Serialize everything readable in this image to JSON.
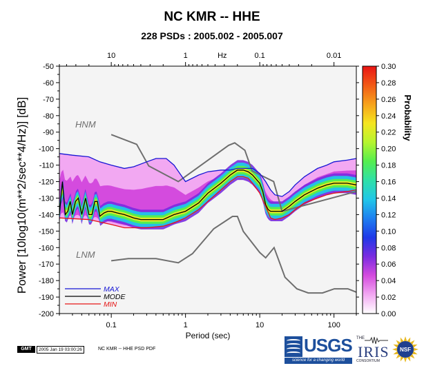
{
  "title": "NC KMR -- HHE",
  "subtitle": "228 PSDs : 2005.002 - 2005.007",
  "chart_data": {
    "type": "heatmap",
    "title": "NC KMR -- HHE",
    "subtitle": "228 PSDs : 2005.002 - 2005.007",
    "xlabel": "Period (sec)",
    "xscale": "log",
    "xlim": [
      0.02,
      200
    ],
    "x_ticks": [
      0.1,
      1,
      10,
      100
    ],
    "x_tick_labels": [
      "0.1",
      "1",
      "10",
      "100"
    ],
    "top_axis_label": "Hz",
    "top_ticks": [
      10,
      1,
      0.1,
      0.01
    ],
    "top_tick_labels": [
      "10",
      "1",
      "0.1",
      "0.01"
    ],
    "ylabel": "Power [10log10(m**2/sec**4/Hz)] [dB]",
    "ylim": [
      -200,
      -50
    ],
    "y_ticks": [
      -50,
      -60,
      -70,
      -80,
      -90,
      -100,
      -110,
      -120,
      -130,
      -140,
      -150,
      -160,
      -170,
      -180,
      -190,
      -200
    ],
    "y_tick_labels": [
      "-50",
      "-60",
      "-70",
      "-80",
      "-90",
      "-100",
      "-110",
      "-120",
      "-130",
      "-140",
      "-150",
      "-160",
      "-170",
      "-180",
      "-190",
      "-200"
    ],
    "colorbar": {
      "label": "Probability",
      "range": [
        0.0,
        0.3
      ],
      "ticks": [
        0.0,
        0.02,
        0.04,
        0.06,
        0.08,
        0.1,
        0.12,
        0.14,
        0.16,
        0.18,
        0.2,
        0.22,
        0.24,
        0.26,
        0.28,
        0.3
      ],
      "tick_labels": [
        "0.00",
        "0.02",
        "0.04",
        "0.06",
        "0.08",
        "0.10",
        "0.12",
        "0.14",
        "0.16",
        "0.18",
        "0.20",
        "0.22",
        "0.24",
        "0.26",
        "0.28",
        "0.30"
      ],
      "colors": [
        "#ffffff",
        "#f2a8f2",
        "#d44bde",
        "#7a2be0",
        "#1f39e8",
        "#1e7ff0",
        "#21c7e8",
        "#2fe0a8",
        "#55ee4f",
        "#b6f52f",
        "#f5e51f",
        "#f6a21b",
        "#f25a16",
        "#e81414"
      ]
    },
    "annotations": [
      "HNM",
      "LNM"
    ],
    "legend": {
      "placement": "bottom-left",
      "items": [
        {
          "name": "MAX",
          "color": "#1414d4"
        },
        {
          "name": "MODE",
          "color": "#000000"
        },
        {
          "name": "MIN",
          "color": "#e51414"
        }
      ]
    },
    "series": [
      {
        "name": "MAX",
        "color": "#1414d4",
        "x": [
          0.02,
          0.03,
          0.05,
          0.07,
          0.1,
          0.15,
          0.2,
          0.3,
          0.4,
          0.55,
          0.7,
          1.0,
          1.5,
          2,
          3,
          4,
          5,
          6,
          7,
          8,
          10,
          12,
          14,
          16,
          20,
          25,
          30,
          40,
          60,
          80,
          100,
          150,
          200
        ],
        "y": [
          -103,
          -104,
          -105,
          -108,
          -110,
          -112,
          -111,
          -108,
          -106,
          -106,
          -110,
          -120,
          -116,
          -114,
          -113,
          -113,
          -112,
          -112,
          -112,
          -112,
          -115,
          -120,
          -125,
          -128,
          -129,
          -126,
          -122,
          -117,
          -112,
          -110,
          -108,
          -107,
          -106
        ]
      },
      {
        "name": "MODE",
        "color": "#000000",
        "x": [
          0.02,
          0.022,
          0.024,
          0.026,
          0.028,
          0.03,
          0.033,
          0.036,
          0.04,
          0.045,
          0.05,
          0.055,
          0.06,
          0.065,
          0.07,
          0.08,
          0.09,
          0.1,
          0.12,
          0.15,
          0.2,
          0.25,
          0.3,
          0.4,
          0.5,
          0.7,
          1.0,
          1.5,
          2,
          3,
          4,
          5,
          6,
          7,
          8,
          10,
          11,
          12,
          13,
          14,
          16,
          20,
          25,
          30,
          40,
          60,
          80,
          100,
          150,
          200
        ],
        "y": [
          -140,
          -120,
          -140,
          -138,
          -132,
          -140,
          -132,
          -130,
          -140,
          -130,
          -140,
          -140,
          -132,
          -132,
          -141,
          -139,
          -138,
          -138,
          -139,
          -140,
          -142,
          -143,
          -143,
          -143,
          -143,
          -140,
          -138,
          -133,
          -127,
          -121,
          -116,
          -113,
          -113,
          -114,
          -116,
          -121,
          -126,
          -134,
          -137,
          -138,
          -138,
          -138,
          -135,
          -132,
          -128,
          -124,
          -122,
          -121,
          -121,
          -122
        ]
      },
      {
        "name": "MIN",
        "color": "#e51414",
        "x": [
          0.02,
          0.05,
          0.1,
          0.15,
          0.2,
          0.3,
          0.5,
          0.7,
          1.0,
          1.5,
          2,
          3,
          4,
          5,
          6,
          7,
          8,
          10,
          12,
          14,
          16,
          20,
          25,
          30,
          40,
          60,
          80,
          100,
          150,
          200
        ],
        "y": [
          -142,
          -143,
          -146,
          -148,
          -148,
          -148,
          -147,
          -145,
          -142,
          -137,
          -132,
          -125,
          -120,
          -117,
          -117,
          -118,
          -121,
          -127,
          -135,
          -142,
          -143,
          -142,
          -140,
          -137,
          -133,
          -130,
          -128,
          -127,
          -126,
          -125
        ]
      },
      {
        "name": "HNM",
        "color": "#6e6e6e",
        "x": [
          0.1,
          0.22,
          0.32,
          0.8,
          3.8,
          4.6,
          6.3,
          7.9,
          15.4,
          20,
          354.8
        ],
        "y": [
          -91.5,
          -97.4,
          -110.5,
          -120,
          -98,
          -96.5,
          -101,
          -113.5,
          -120,
          -138,
          -126
        ]
      },
      {
        "name": "LNM",
        "color": "#6e6e6e",
        "x": [
          0.1,
          0.17,
          0.4,
          0.8,
          1.24,
          2.4,
          4.3,
          5,
          6,
          10,
          12,
          15.6,
          21.9,
          31.6,
          45,
          70,
          101,
          154,
          328
        ],
        "y": [
          -168,
          -166.7,
          -166.7,
          -169.2,
          -163.7,
          -148.6,
          -141.1,
          -141.1,
          -150.2,
          -163,
          -166.2,
          -160,
          -178,
          -185,
          -187.5,
          -187.5,
          -185,
          -185,
          -187
        ]
      }
    ]
  },
  "legend_labels": {
    "max": "MAX",
    "mode": "MODE",
    "min": "MIN"
  },
  "footer": {
    "gmt": "GMT",
    "timestamp": "2005 Jan 19 03:00:26",
    "caption": "NC KMR -- HHE PSD PDF",
    "usgs": "USGS",
    "usgs_tagline": "science for a changing world",
    "iris_the": "THE",
    "iris": "IRIS",
    "iris_consortium": "CONSORTIUM",
    "nsf": "NSF"
  }
}
